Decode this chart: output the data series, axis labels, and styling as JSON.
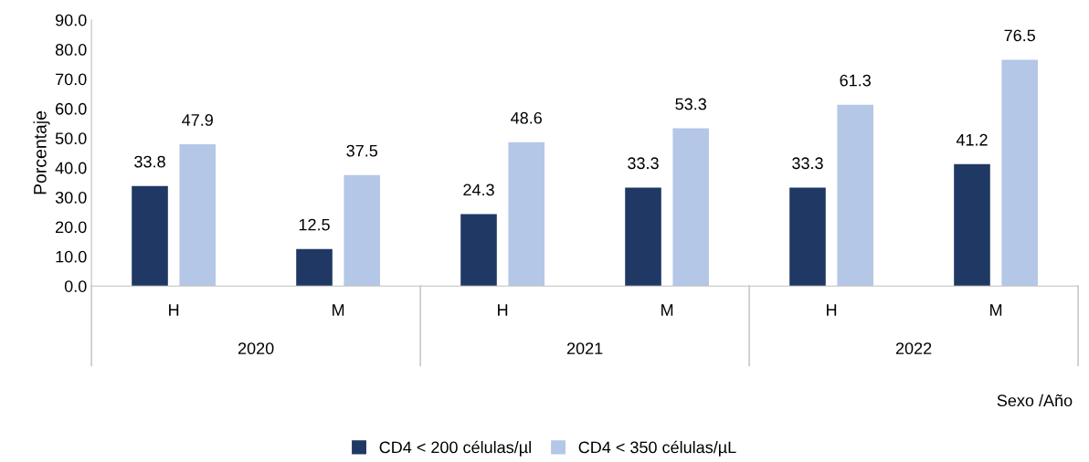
{
  "chart_data": {
    "type": "bar",
    "categories": [
      "H",
      "M",
      "H",
      "M",
      "H",
      "M"
    ],
    "series": [
      {
        "name": "CD4 < 200 células/µl",
        "color": "#1f3864",
        "values": [
          33.8,
          12.5,
          24.3,
          33.3,
          33.3,
          41.2
        ]
      },
      {
        "name": "CD4 < 350 células/µL",
        "color": "#b4c7e7",
        "values": [
          47.9,
          37.5,
          48.6,
          53.3,
          61.3,
          76.5
        ]
      }
    ],
    "ylabel": "Porcentaje",
    "xlabel": "Sexo /Año",
    "annotations": [
      "2020",
      "2021",
      "2022"
    ],
    "ylim": [
      0,
      90
    ],
    "yticks": [
      {
        "value": 0,
        "label": "0.0"
      },
      {
        "value": 10,
        "label": "10.0"
      },
      {
        "value": 20,
        "label": "20.0"
      },
      {
        "value": 30,
        "label": "30.0"
      },
      {
        "value": 40,
        "label": "40.0"
      },
      {
        "value": 50,
        "label": "50.0"
      },
      {
        "value": 60,
        "label": "60.0"
      },
      {
        "value": 70,
        "label": "70.0"
      },
      {
        "value": 80,
        "label": "80.0"
      },
      {
        "value": 90,
        "label": "90.0"
      }
    ],
    "data_labels": true,
    "grid": false,
    "legend": "bottom"
  }
}
